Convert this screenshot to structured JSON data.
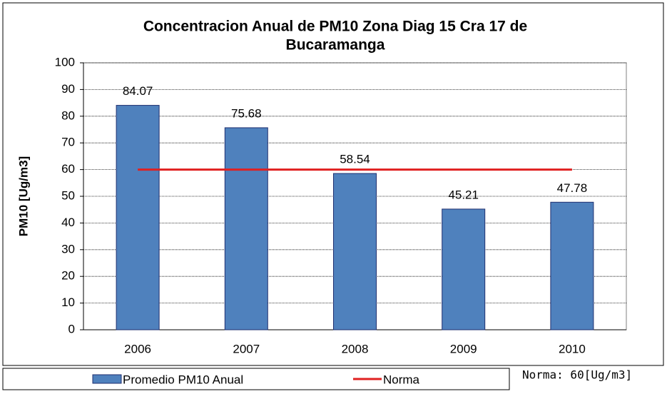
{
  "chart_data": {
    "type": "bar",
    "title": "Concentracion  Anual de PM10 Zona Diag 15 Cra 17 de",
    "title_line2": "Bucaramanga",
    "y_label": "PM10 [Ug/m3]",
    "categories": [
      "2006",
      "2007",
      "2008",
      "2009",
      "2010"
    ],
    "series": [
      {
        "name": "Promedio PM10 Anual",
        "color": "#4f81bd",
        "type": "bar",
        "values": [
          84.07,
          75.68,
          58.54,
          45.21,
          47.78
        ]
      },
      {
        "name": "Norma",
        "color": "#e02020",
        "type": "line",
        "values": [
          60,
          60,
          60,
          60,
          60
        ]
      }
    ],
    "ylim": [
      0,
      100
    ],
    "yticks": [
      0,
      10,
      20,
      30,
      40,
      50,
      60,
      70,
      80,
      90,
      100
    ],
    "grid": true,
    "annotation": "Norma: 60[Ug/m3]"
  }
}
